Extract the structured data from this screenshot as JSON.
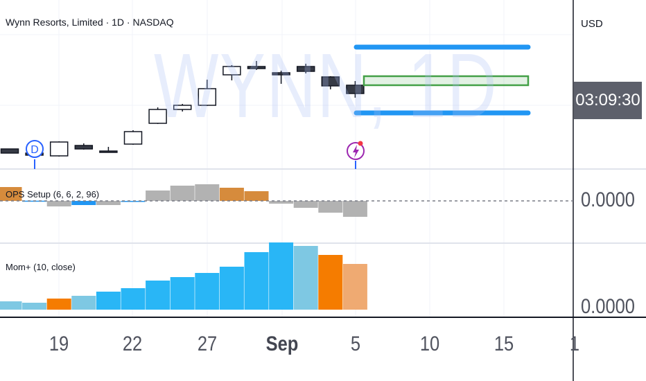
{
  "header": {
    "title": "Wynn Resorts, Limited · 1D · NASDAQ",
    "watermark": "WYNN, 1D",
    "currency": "USD",
    "countdown": "03:09:30"
  },
  "panes": {
    "ops_label": "OPS Setup (6, 6, 2, 96)",
    "ops_value": "0.0000",
    "mom_label": "Mom+ (10, close)",
    "mom_value": "0.0000"
  },
  "x_axis": {
    "ticks": [
      "19",
      "22",
      "27",
      "Sep",
      "5",
      "10",
      "15",
      "1"
    ]
  },
  "markers": {
    "dividend": "D",
    "earnings_icon": "lightning-icon"
  },
  "colors": {
    "bull_candle_fill": "#ffffff",
    "bear_candle_fill": "#363a45",
    "projection_blue": "#2196f3",
    "projection_green": "#43a047",
    "ops_orange": "#d68b3c",
    "ops_blue": "#2196f3",
    "ops_gray": "#b2b2b2",
    "mom_light_blue": "#7ec8e3",
    "mom_blue": "#29b6f6",
    "mom_orange": "#f57c00",
    "mom_peach": "#efaa72"
  },
  "chart_data": [
    {
      "type": "candlestick",
      "candles": [
        {
          "o": 3,
          "c": -3,
          "h": 3,
          "l": -3
        },
        {
          "o": -3,
          "c": -6,
          "h": -3,
          "l": -7
        },
        {
          "o": -7,
          "c": 13,
          "h": 14,
          "l": -8
        },
        {
          "o": 8,
          "c": 3,
          "h": 11,
          "l": 2
        },
        {
          "o": 0,
          "c": -1,
          "h": 6,
          "l": -2
        },
        {
          "o": 10,
          "c": 28,
          "h": 30,
          "l": 9
        },
        {
          "o": 40,
          "c": 60,
          "h": 63,
          "l": 39
        },
        {
          "o": 60,
          "c": 66,
          "h": 68,
          "l": 57
        },
        {
          "o": 66,
          "c": 90,
          "h": 103,
          "l": 65
        },
        {
          "o": 110,
          "c": 122,
          "h": 124,
          "l": 102
        },
        {
          "o": 122,
          "c": 119,
          "h": 130,
          "l": 117
        },
        {
          "o": 113,
          "c": 110,
          "h": 116,
          "l": 97
        },
        {
          "o": 122,
          "c": 115,
          "h": 126,
          "l": 112
        },
        {
          "o": 107,
          "c": 94,
          "h": 108,
          "l": 89
        },
        {
          "o": 95,
          "c": 83,
          "h": 101,
          "l": 77
        }
      ],
      "projection": {
        "upper": 150,
        "middle_high": 108,
        "middle_low": 95,
        "lower": 55
      }
    },
    {
      "type": "bar",
      "name": "OPS Setup (6, 6, 2, 96)",
      "values": [
        20,
        0.3,
        -8,
        -6,
        -6,
        -0.3,
        15,
        22,
        24,
        19,
        14,
        -4,
        -10,
        -17,
        -23
      ],
      "colors": [
        "ops_orange",
        "ops_blue",
        "ops_gray",
        "ops_blue",
        "ops_gray",
        "ops_blue",
        "ops_gray",
        "ops_gray",
        "ops_gray",
        "ops_orange",
        "ops_orange",
        "ops_gray",
        "ops_gray",
        "ops_gray",
        "ops_gray"
      ]
    },
    {
      "type": "bar",
      "name": "Mom+ (10, close)",
      "values": [
        12,
        10,
        16,
        20,
        26,
        31,
        42,
        47,
        53,
        62,
        83,
        97,
        92,
        79,
        66
      ],
      "colors": [
        "mom_light_blue",
        "mom_light_blue",
        "mom_orange",
        "mom_light_blue",
        "mom_blue",
        "mom_blue",
        "mom_blue",
        "mom_blue",
        "mom_blue",
        "mom_blue",
        "mom_blue",
        "mom_blue",
        "mom_light_blue",
        "mom_orange",
        "mom_peach"
      ]
    }
  ]
}
